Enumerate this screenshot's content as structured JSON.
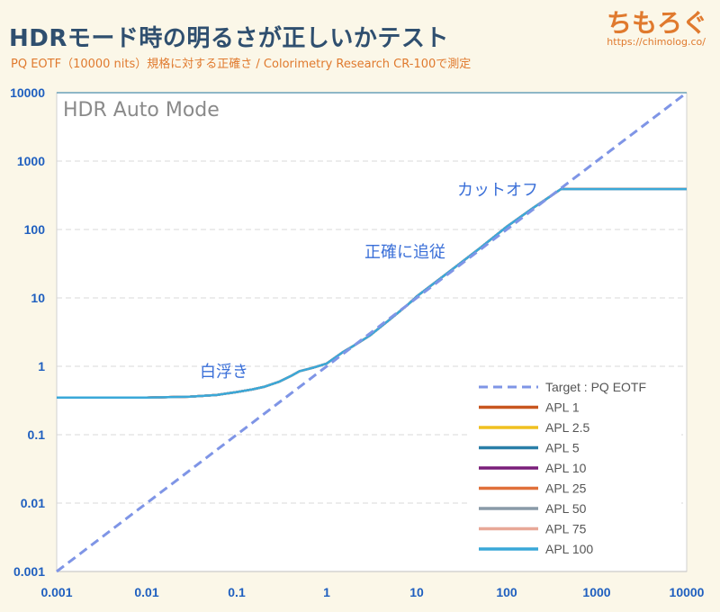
{
  "header": {
    "title": "HDRモード時の明るさが正しいかテスト",
    "subtitle": "PQ EOTF（10000 nits）規格に対する正確さ / Colorimetry Research CR-100で測定",
    "brand": "ちもろぐ",
    "brand_url": "https://chimolog.co/"
  },
  "chart_data": {
    "type": "line",
    "title": "HDR Auto Mode",
    "xscale": "log",
    "yscale": "log",
    "xlim": [
      0.001,
      10000
    ],
    "ylim": [
      0.001,
      10000
    ],
    "x_ticks": [
      "0.001",
      "0.01",
      "0.1",
      "1",
      "10",
      "100",
      "1000",
      "10000"
    ],
    "y_ticks": [
      "0.001",
      "0.01",
      "0.1",
      "1",
      "10",
      "100",
      "1000",
      "10000"
    ],
    "grid": "horizontal",
    "legend_position": "bottom-right",
    "annotations": [
      {
        "text": "白浮き",
        "x": 0.015,
        "y": 0.8
      },
      {
        "text": "正確に追従",
        "x": 0.4,
        "y": 32
      },
      {
        "text": "カットオフ",
        "x": 0.5,
        "y": 310
      }
    ],
    "series": [
      {
        "name": "Target : PQ EOTF",
        "color": "#7f95e6",
        "dashed": true,
        "x": [
          0.001,
          10000
        ],
        "y": [
          0.001,
          10000
        ]
      },
      {
        "name": "APL 1",
        "color": "#c8561f",
        "dashed": false,
        "x": [
          0.001,
          0.01,
          0.03,
          0.06,
          0.1,
          0.15,
          0.2,
          0.3,
          0.4,
          0.5,
          0.7,
          1,
          1.5,
          2,
          3,
          5,
          8,
          10,
          20,
          50,
          100,
          200,
          300,
          400,
          10000
        ],
        "y": [
          0.35,
          0.35,
          0.36,
          0.38,
          0.42,
          0.46,
          0.5,
          0.6,
          0.72,
          0.85,
          0.95,
          1.1,
          1.6,
          2,
          2.8,
          4.8,
          8,
          10.5,
          21,
          53,
          110,
          210,
          300,
          390,
          390
        ]
      },
      {
        "name": "APL 2.5",
        "color": "#f0c020",
        "dashed": false,
        "x": [
          0.001,
          0.01,
          0.03,
          0.06,
          0.1,
          0.15,
          0.2,
          0.3,
          0.4,
          0.5,
          0.7,
          1,
          1.5,
          2,
          3,
          5,
          8,
          10,
          20,
          50,
          100,
          200,
          300,
          400,
          10000
        ],
        "y": [
          0.35,
          0.35,
          0.36,
          0.38,
          0.42,
          0.46,
          0.5,
          0.6,
          0.72,
          0.85,
          0.95,
          1.1,
          1.6,
          2,
          2.8,
          4.8,
          8,
          10.5,
          21,
          53,
          110,
          210,
          300,
          390,
          390
        ]
      },
      {
        "name": "APL 5",
        "color": "#2a7fa8",
        "dashed": false,
        "x": [
          0.001,
          0.01,
          0.03,
          0.06,
          0.1,
          0.15,
          0.2,
          0.3,
          0.4,
          0.5,
          0.7,
          1,
          1.5,
          2,
          3,
          5,
          8,
          10,
          20,
          50,
          100,
          200,
          300,
          400,
          10000
        ],
        "y": [
          0.35,
          0.35,
          0.36,
          0.38,
          0.42,
          0.46,
          0.5,
          0.6,
          0.72,
          0.85,
          0.95,
          1.1,
          1.6,
          2,
          2.8,
          4.8,
          8,
          10.5,
          21,
          53,
          110,
          210,
          300,
          390,
          390
        ]
      },
      {
        "name": "APL 10",
        "color": "#7a1f7a",
        "dashed": false,
        "x": [
          0.001,
          0.01,
          0.03,
          0.06,
          0.1,
          0.15,
          0.2,
          0.3,
          0.4,
          0.5,
          0.7,
          1,
          1.5,
          2,
          3,
          5,
          8,
          10,
          20,
          50,
          100,
          200,
          300,
          400,
          10000
        ],
        "y": [
          0.35,
          0.35,
          0.36,
          0.38,
          0.42,
          0.46,
          0.5,
          0.6,
          0.72,
          0.85,
          0.95,
          1.1,
          1.6,
          2,
          2.8,
          4.8,
          8,
          10.5,
          21,
          53,
          110,
          210,
          300,
          390,
          390
        ]
      },
      {
        "name": "APL 25",
        "color": "#e0703a",
        "dashed": false,
        "x": [
          0.001,
          0.01,
          0.03,
          0.06,
          0.1,
          0.15,
          0.2,
          0.3,
          0.4,
          0.5,
          0.7,
          1,
          1.5,
          2,
          3,
          5,
          8,
          10,
          20,
          50,
          100,
          200,
          300,
          400,
          10000
        ],
        "y": [
          0.35,
          0.35,
          0.36,
          0.38,
          0.42,
          0.46,
          0.5,
          0.6,
          0.72,
          0.85,
          0.95,
          1.1,
          1.6,
          2,
          2.8,
          4.8,
          8,
          10.5,
          21,
          53,
          110,
          210,
          300,
          390,
          390
        ]
      },
      {
        "name": "APL 50",
        "color": "#8a9aa8",
        "dashed": false,
        "x": [
          0.001,
          0.01,
          0.03,
          0.06,
          0.1,
          0.15,
          0.2,
          0.3,
          0.4,
          0.5,
          0.7,
          1,
          1.5,
          2,
          3,
          5,
          8,
          10,
          20,
          50,
          100,
          200,
          300,
          400,
          10000
        ],
        "y": [
          0.35,
          0.35,
          0.36,
          0.38,
          0.42,
          0.46,
          0.5,
          0.6,
          0.72,
          0.85,
          0.95,
          1.1,
          1.6,
          2,
          2.8,
          4.8,
          8,
          10.5,
          21,
          53,
          110,
          210,
          300,
          390,
          390
        ]
      },
      {
        "name": "APL 75",
        "color": "#e8a898",
        "dashed": false,
        "x": [
          0.001,
          0.01,
          0.03,
          0.06,
          0.1,
          0.15,
          0.2,
          0.3,
          0.4,
          0.5,
          0.7,
          1,
          1.5,
          2,
          3,
          5,
          8,
          10,
          20,
          50,
          100,
          200,
          300,
          400,
          10000
        ],
        "y": [
          0.35,
          0.35,
          0.36,
          0.38,
          0.42,
          0.46,
          0.5,
          0.6,
          0.72,
          0.85,
          0.95,
          1.1,
          1.6,
          2,
          2.8,
          4.8,
          8,
          10.5,
          21,
          53,
          110,
          210,
          300,
          390,
          390
        ]
      },
      {
        "name": "APL 100",
        "color": "#3aa8d8",
        "dashed": false,
        "x": [
          0.001,
          0.01,
          0.03,
          0.06,
          0.1,
          0.15,
          0.2,
          0.3,
          0.4,
          0.5,
          0.7,
          1,
          1.5,
          2,
          3,
          5,
          8,
          10,
          20,
          50,
          100,
          200,
          300,
          400,
          10000
        ],
        "y": [
          0.35,
          0.35,
          0.36,
          0.38,
          0.42,
          0.46,
          0.5,
          0.6,
          0.72,
          0.85,
          0.95,
          1.1,
          1.6,
          2,
          2.8,
          4.8,
          8,
          10.5,
          21,
          53,
          110,
          210,
          300,
          390,
          390
        ]
      }
    ]
  },
  "colors": {
    "title": "#2f4f6f",
    "accent": "#e07a2e",
    "tick_label": "#1f5fbf",
    "annotation": "#3a6fd8",
    "chart_title": "#8a8a8a",
    "top_line": "#6aa0b8"
  }
}
